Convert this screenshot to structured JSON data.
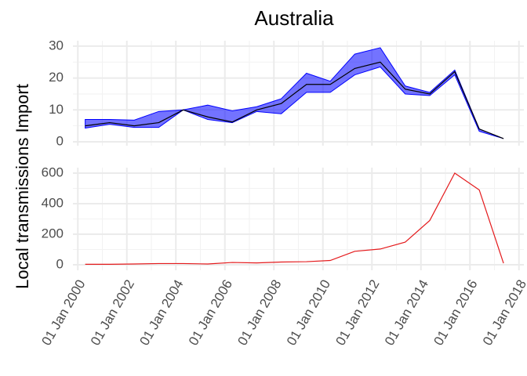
{
  "chart_data": [
    {
      "type": "line",
      "title": "Australia",
      "ylabel": "Local transmissions Import",
      "x": [
        2000.3,
        2001.3,
        2002.3,
        2003.3,
        2004.3,
        2005.3,
        2006.3,
        2007.3,
        2008.3,
        2009.33,
        2010.3,
        2011.3,
        2012.34,
        2013.36,
        2014.36,
        2015.38,
        2016.38,
        2017.37
      ],
      "series": [
        {
          "color": "#000000",
          "band_color": "#0000ff",
          "values": [
            5,
            6,
            5,
            6,
            10,
            7.8,
            6.2,
            10,
            12,
            18,
            18,
            23,
            25,
            16.5,
            15,
            22,
            4,
            1
          ],
          "lower": [
            4.3,
            5.5,
            4.5,
            4.5,
            10,
            7,
            6,
            9.5,
            8.8,
            15.5,
            15.5,
            21,
            23.5,
            15,
            14.5,
            21,
            3.3,
            1
          ],
          "upper": [
            7,
            7,
            6.8,
            9.5,
            10,
            11.5,
            9.7,
            11,
            13.5,
            21.5,
            19,
            27.5,
            29.5,
            17.5,
            15.5,
            22.5,
            4,
            1
          ]
        }
      ],
      "xlim": [
        1999.8,
        2018.2
      ],
      "ylim": [
        -1.23,
        31.7
      ],
      "yticks": [
        0,
        10,
        20,
        30
      ],
      "grid": true
    },
    {
      "type": "line",
      "x": [
        2000.3,
        2001.3,
        2002.3,
        2003.3,
        2004.3,
        2005.3,
        2006.3,
        2007.3,
        2008.3,
        2009.33,
        2010.3,
        2011.3,
        2012.34,
        2013.36,
        2014.36,
        2015.38,
        2016.38,
        2017.37
      ],
      "series": [
        {
          "color": "#e41a1c",
          "values": [
            3,
            3,
            5,
            8,
            8,
            5,
            15,
            12,
            18,
            20,
            28,
            88,
            103,
            148,
            290,
            600,
            490,
            10
          ]
        }
      ],
      "xlim": [
        1999.8,
        2018.2
      ],
      "ylim": [
        -36,
        636
      ],
      "yticks": [
        0,
        200,
        400,
        600
      ],
      "xticks": [
        {
          "value": 2000,
          "label": "01 Jan 2000"
        },
        {
          "value": 2002,
          "label": "01 Jan 2002"
        },
        {
          "value": 2004,
          "label": "01 Jan 2004"
        },
        {
          "value": 2006,
          "label": "01 Jan 2006"
        },
        {
          "value": 2008,
          "label": "01 Jan 2008"
        },
        {
          "value": 2010,
          "label": "01 Jan 2010"
        },
        {
          "value": 2012,
          "label": "01 Jan 2012"
        },
        {
          "value": 2014,
          "label": "01 Jan 2014"
        },
        {
          "value": 2016,
          "label": "01 Jan 2016"
        },
        {
          "value": 2018,
          "label": "01 Jan 2018"
        }
      ],
      "grid": true
    }
  ]
}
